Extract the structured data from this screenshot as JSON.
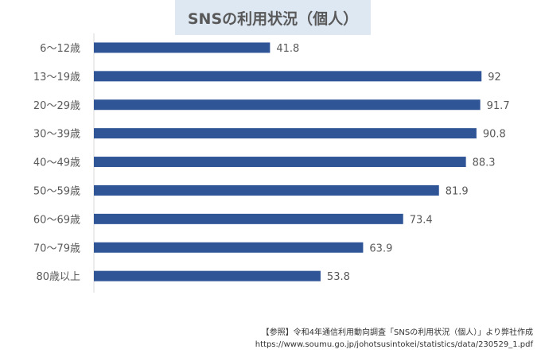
{
  "chart_data": {
    "type": "bar",
    "orientation": "horizontal",
    "title": "SNSの利用状況（個人）",
    "categories": [
      "6～12歳",
      "13～19歳",
      "20～29歳",
      "30～39歳",
      "40～49歳",
      "50～59歳",
      "60～69歳",
      "70～79歳",
      "80歳以上"
    ],
    "values": [
      41.8,
      92,
      91.7,
      90.8,
      88.3,
      81.9,
      73.4,
      63.9,
      53.8
    ],
    "data_labels": [
      "41.8",
      "92",
      "91.7",
      "90.8",
      "88.3",
      "81.9",
      "73.4",
      "63.9",
      "53.8"
    ],
    "xlim": [
      0,
      100
    ],
    "grid": false,
    "bar_color": "#2f5597"
  },
  "source": {
    "line1": "【参照】令和4年通信利用動向調査「SNSの利用状況（個人）」より弊社作成",
    "line2": "https://www.soumu.go.jp/johotsusintokei/statistics/data/230529_1.pdf"
  }
}
